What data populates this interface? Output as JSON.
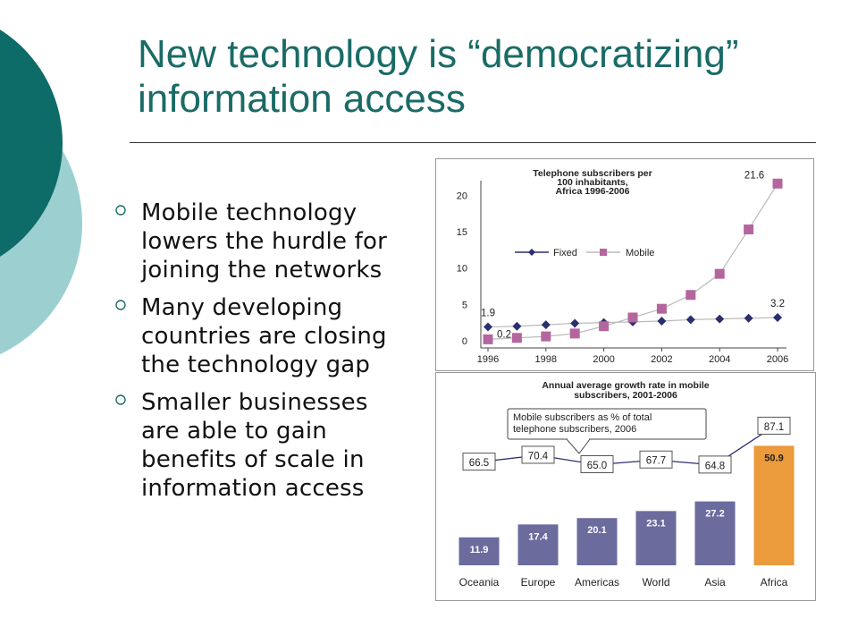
{
  "slide": {
    "title_line1": "New technology is “democratizing”",
    "title_line2": "information access",
    "accent_colors": {
      "dark_teal": "#0d6b68",
      "light_teal": "#9ccfd0",
      "title": "#1a6b66"
    },
    "bullets": [
      "Mobile technology lowers the hurdle for joining the networks",
      "Many developing countries are closing the technology gap",
      "Smaller businesses are able to gain benefits of scale in information access"
    ]
  },
  "chart_data": [
    {
      "type": "line",
      "title": [
        "Telephone subscribers per",
        "100 inhabitants,",
        "Africa 1996-2006"
      ],
      "xlabel": "",
      "ylabel": "",
      "x": [
        1996,
        1997,
        1998,
        1999,
        2000,
        2001,
        2002,
        2003,
        2004,
        2005,
        2006
      ],
      "xticks": [
        1996,
        1998,
        2000,
        2002,
        2004,
        2006
      ],
      "yticks": [
        0,
        5,
        10,
        15,
        20
      ],
      "ylim": [
        0,
        22
      ],
      "xlim": [
        1996,
        2006
      ],
      "grid": false,
      "legend_position": "middle-left",
      "series": [
        {
          "name": "Fixed",
          "color": "#2b2f6e",
          "marker": "diamond",
          "values": [
            1.9,
            2.0,
            2.2,
            2.4,
            2.5,
            2.6,
            2.7,
            2.9,
            3.0,
            3.1,
            3.2
          ]
        },
        {
          "name": "Mobile",
          "color": "#b5659d",
          "marker": "square",
          "values": [
            0.2,
            0.4,
            0.6,
            1.0,
            2.0,
            3.2,
            4.4,
            6.3,
            9.2,
            15.3,
            21.6
          ]
        }
      ],
      "annotations": [
        {
          "series": "Fixed",
          "x": 1996,
          "text": "1.9"
        },
        {
          "series": "Mobile",
          "x": 1996,
          "text": "0.2"
        },
        {
          "series": "Mobile",
          "x": 2006,
          "text": "21.6"
        },
        {
          "series": "Fixed",
          "x": 2006,
          "text": "3.2"
        }
      ]
    },
    {
      "type": "bar",
      "title": [
        "Annual average growth rate in mobile",
        "subscribers, 2001-2006"
      ],
      "xlabel": "",
      "ylabel": "",
      "categories": [
        "Oceania",
        "Europe",
        "Americas",
        "World",
        "Asia",
        "Africa"
      ],
      "ylim": [
        0,
        56
      ],
      "bar_colors": [
        "#6b6b9e",
        "#6b6b9e",
        "#6b6b9e",
        "#6b6b9e",
        "#6b6b9e",
        "#eb9a3c"
      ],
      "series": [
        {
          "name": "",
          "values": [
            11.9,
            17.4,
            20.1,
            23.1,
            27.2,
            50.9
          ]
        }
      ],
      "line_series": {
        "label": [
          "Mobile subscribers as % of total",
          "telephone subscribers, 2006"
        ],
        "values": [
          66.5,
          70.4,
          65.0,
          67.7,
          64.8,
          87.1
        ],
        "labels": [
          "66.5",
          "70.4",
          "65.0",
          "67.7",
          "64.8",
          "87.1"
        ],
        "range": [
          55,
          95
        ],
        "color": "#2b2f6e"
      }
    }
  ]
}
